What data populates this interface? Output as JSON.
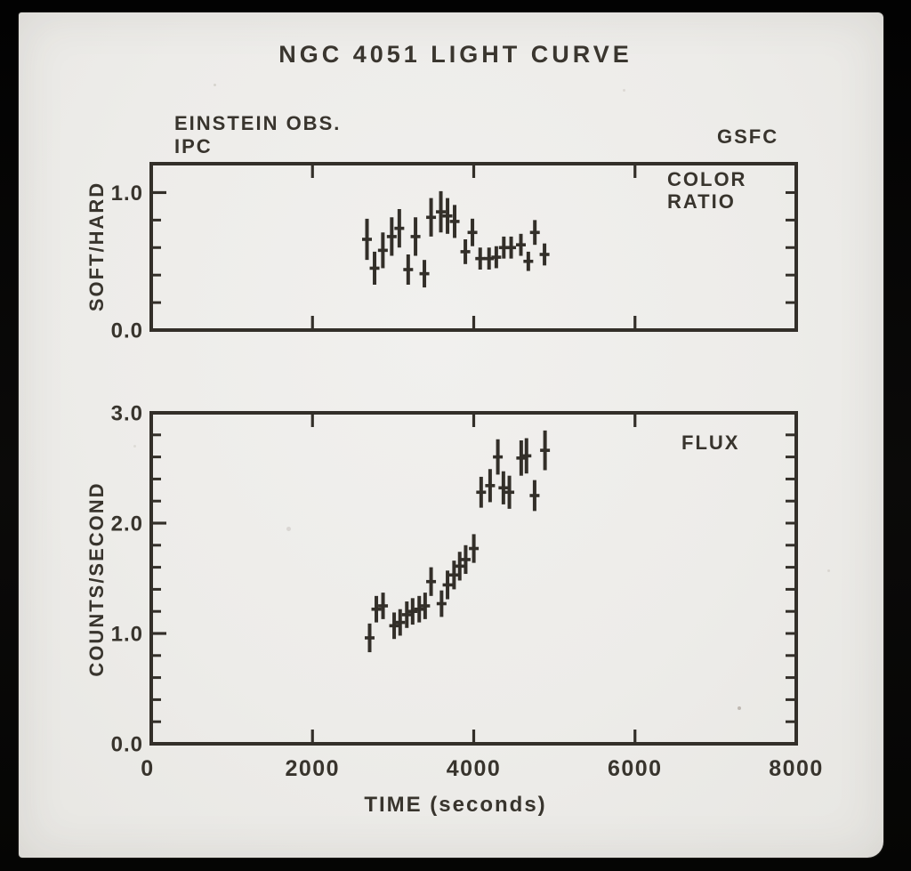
{
  "figure": {
    "title": "NGC 4051 LIGHT CURVE",
    "annotations": {
      "observatory": "EINSTEIN OBS.",
      "instrument": "IPC",
      "institution": "GSFC"
    }
  },
  "x_axis": {
    "label": "TIME (seconds)",
    "min": 0,
    "max": 8000,
    "ticks": [
      {
        "value": 0,
        "label": "0"
      },
      {
        "value": 2000,
        "label": "2000"
      },
      {
        "value": 4000,
        "label": "4000"
      },
      {
        "value": 6000,
        "label": "6000"
      },
      {
        "value": 8000,
        "label": "8000"
      }
    ]
  },
  "chart_data": [
    {
      "type": "scatter",
      "panel": "color-ratio",
      "label_lines": [
        "COLOR",
        "RATIO"
      ],
      "ylabel": "SOFT/HARD",
      "ylim": [
        0.0,
        1.21
      ],
      "yticks": [
        {
          "value": 0.0,
          "label": "0.0"
        },
        {
          "value": 1.0,
          "label": "1.0"
        }
      ],
      "ytick_minor_step": 0.2,
      "xlim": [
        0,
        8000
      ],
      "marker": "error-bar",
      "points": [
        {
          "t": 2676,
          "y": 0.66,
          "err": 0.15
        },
        {
          "t": 2770,
          "y": 0.45,
          "err": 0.12
        },
        {
          "t": 2873,
          "y": 0.58,
          "err": 0.13
        },
        {
          "t": 2983,
          "y": 0.68,
          "err": 0.14
        },
        {
          "t": 3077,
          "y": 0.74,
          "err": 0.14
        },
        {
          "t": 3187,
          "y": 0.44,
          "err": 0.11
        },
        {
          "t": 3278,
          "y": 0.68,
          "err": 0.14
        },
        {
          "t": 3388,
          "y": 0.41,
          "err": 0.1
        },
        {
          "t": 3471,
          "y": 0.82,
          "err": 0.14
        },
        {
          "t": 3592,
          "y": 0.86,
          "err": 0.15
        },
        {
          "t": 3675,
          "y": 0.83,
          "err": 0.13
        },
        {
          "t": 3763,
          "y": 0.79,
          "err": 0.12
        },
        {
          "t": 3896,
          "y": 0.57,
          "err": 0.09
        },
        {
          "t": 3984,
          "y": 0.71,
          "err": 0.1
        },
        {
          "t": 4080,
          "y": 0.52,
          "err": 0.08
        },
        {
          "t": 4190,
          "y": 0.52,
          "err": 0.08
        },
        {
          "t": 4280,
          "y": 0.53,
          "err": 0.08
        },
        {
          "t": 4373,
          "y": 0.6,
          "err": 0.08
        },
        {
          "t": 4464,
          "y": 0.6,
          "err": 0.08
        },
        {
          "t": 4585,
          "y": 0.62,
          "err": 0.08
        },
        {
          "t": 4677,
          "y": 0.5,
          "err": 0.07
        },
        {
          "t": 4758,
          "y": 0.71,
          "err": 0.09
        },
        {
          "t": 4878,
          "y": 0.55,
          "err": 0.08
        }
      ]
    },
    {
      "type": "scatter",
      "panel": "flux",
      "label_lines": [
        "FLUX"
      ],
      "ylabel": "COUNTS/SECOND",
      "ylim": [
        0.0,
        3.0
      ],
      "yticks": [
        {
          "value": 0.0,
          "label": "0.0"
        },
        {
          "value": 1.0,
          "label": "1.0"
        },
        {
          "value": 2.0,
          "label": "2.0"
        },
        {
          "value": 3.0,
          "label": "3.0"
        }
      ],
      "ytick_minor_step": 0.2,
      "xlim": [
        0,
        8000
      ],
      "marker": "error-bar",
      "points": [
        {
          "t": 2709,
          "y": 0.96,
          "err": 0.13
        },
        {
          "t": 2792,
          "y": 1.22,
          "err": 0.12
        },
        {
          "t": 2875,
          "y": 1.25,
          "err": 0.12
        },
        {
          "t": 3013,
          "y": 1.07,
          "err": 0.12
        },
        {
          "t": 3087,
          "y": 1.1,
          "err": 0.12
        },
        {
          "t": 3170,
          "y": 1.17,
          "err": 0.12
        },
        {
          "t": 3242,
          "y": 1.2,
          "err": 0.12
        },
        {
          "t": 3324,
          "y": 1.22,
          "err": 0.12
        },
        {
          "t": 3397,
          "y": 1.25,
          "err": 0.12
        },
        {
          "t": 3471,
          "y": 1.47,
          "err": 0.13
        },
        {
          "t": 3601,
          "y": 1.27,
          "err": 0.12
        },
        {
          "t": 3675,
          "y": 1.44,
          "err": 0.13
        },
        {
          "t": 3756,
          "y": 1.53,
          "err": 0.13
        },
        {
          "t": 3826,
          "y": 1.61,
          "err": 0.13
        },
        {
          "t": 3900,
          "y": 1.67,
          "err": 0.13
        },
        {
          "t": 4001,
          "y": 1.77,
          "err": 0.13
        },
        {
          "t": 4092,
          "y": 2.28,
          "err": 0.14
        },
        {
          "t": 4203,
          "y": 2.34,
          "err": 0.15
        },
        {
          "t": 4299,
          "y": 2.6,
          "err": 0.16
        },
        {
          "t": 4368,
          "y": 2.32,
          "err": 0.15
        },
        {
          "t": 4442,
          "y": 2.28,
          "err": 0.15
        },
        {
          "t": 4589,
          "y": 2.59,
          "err": 0.16
        },
        {
          "t": 4654,
          "y": 2.61,
          "err": 0.16
        },
        {
          "t": 4755,
          "y": 2.25,
          "err": 0.14
        },
        {
          "t": 4884,
          "y": 2.66,
          "err": 0.18
        }
      ]
    }
  ]
}
